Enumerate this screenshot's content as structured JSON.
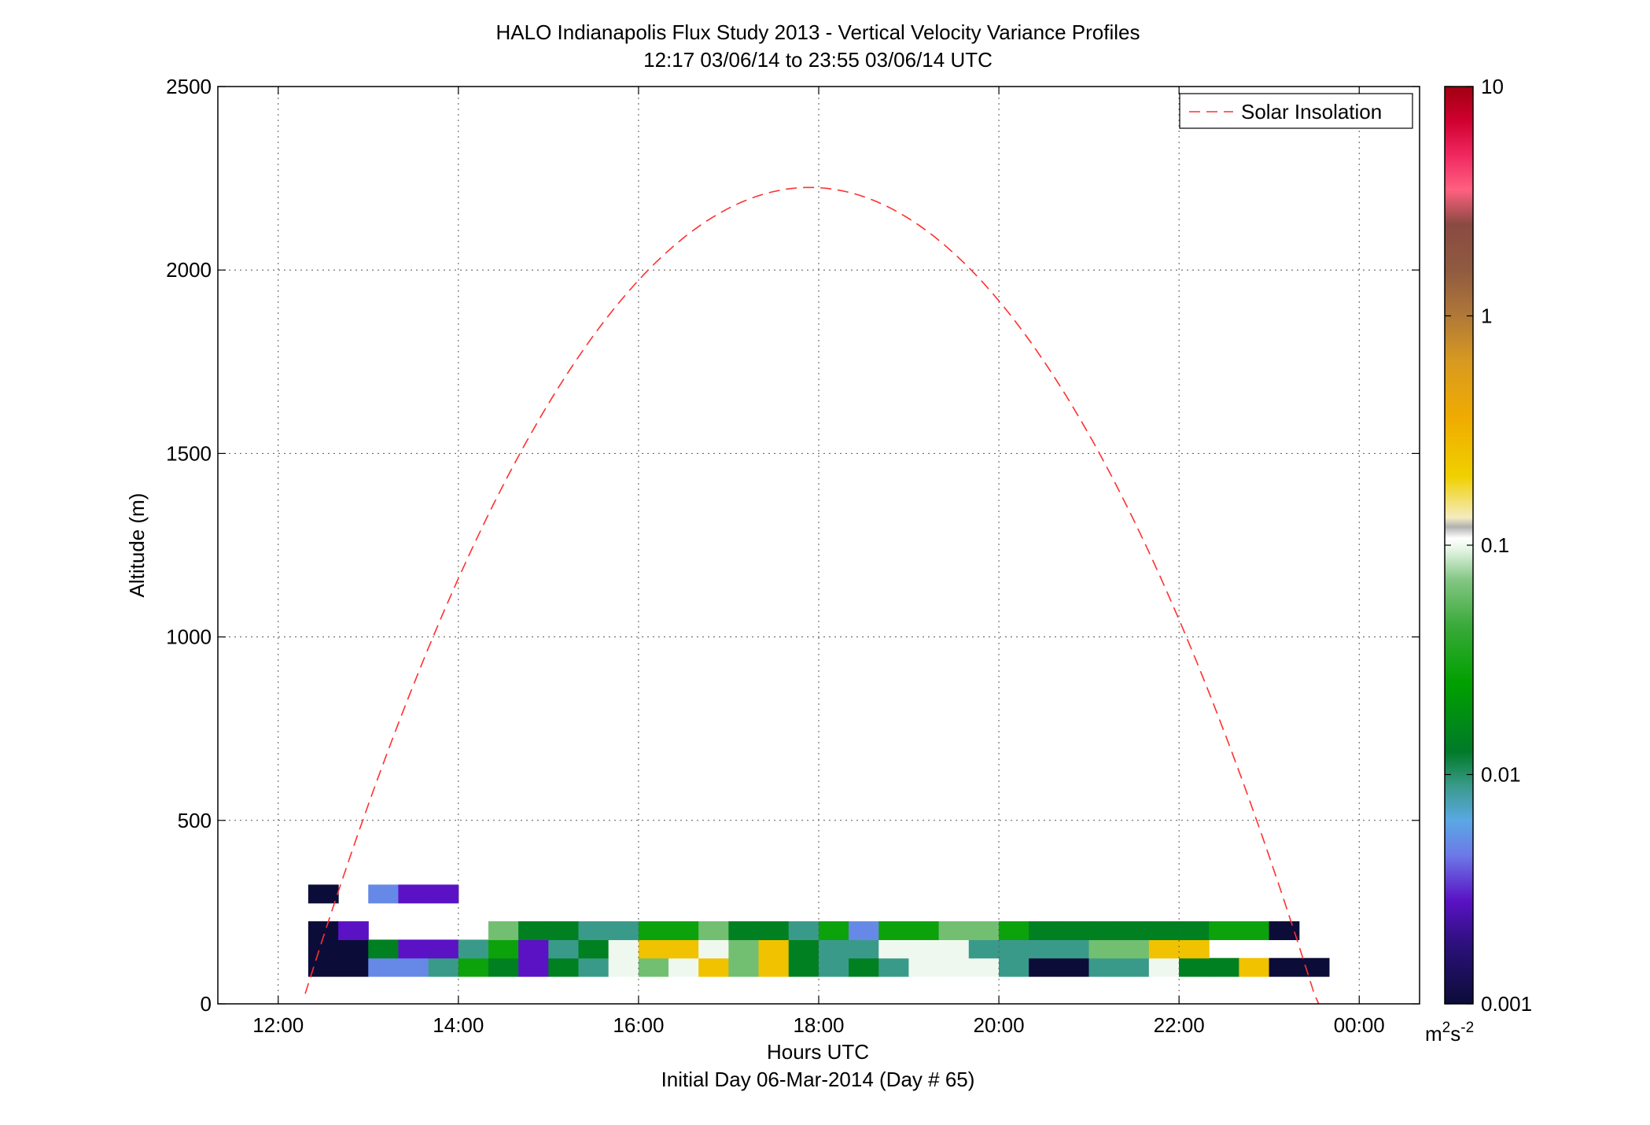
{
  "chart_data": {
    "type": "heatmap",
    "title": "HALO Indianapolis Flux Study 2013 - Vertical Velocity Variance Profiles",
    "subtitle": "12:17 03/06/14 to 23:55 03/06/14  UTC",
    "xlabel": "Hours UTC",
    "xlabel2": "Initial Day 06-Mar-2014 (Day # 65)",
    "ylabel": "Altitude (m)",
    "xlim_hours": [
      11.33,
      24.67
    ],
    "ylim": [
      0,
      2500
    ],
    "x_ticks": [
      {
        "value": 12,
        "label": "12:00"
      },
      {
        "value": 14,
        "label": "14:00"
      },
      {
        "value": 16,
        "label": "16:00"
      },
      {
        "value": 18,
        "label": "18:00"
      },
      {
        "value": 20,
        "label": "20:00"
      },
      {
        "value": 22,
        "label": "22:00"
      },
      {
        "value": 24,
        "label": "00:00"
      }
    ],
    "y_ticks": [
      0,
      500,
      1000,
      1500,
      2000,
      2500
    ],
    "grid": true,
    "colorbar": {
      "scale": "log",
      "range": [
        0.001,
        10
      ],
      "ticks": [
        {
          "value": 10,
          "label": "10"
        },
        {
          "value": 1,
          "label": "1"
        },
        {
          "value": 0.1,
          "label": "0.1"
        },
        {
          "value": 0.01,
          "label": "0.01"
        },
        {
          "value": 0.001,
          "label": "0.001"
        }
      ],
      "units_base": "m",
      "units_sup1": "2",
      "units_mid": "s",
      "units_sup2": "-2",
      "stops": [
        {
          "logv": -3.0,
          "color": "#0c0c38"
        },
        {
          "logv": -2.75,
          "color": "#2a1078"
        },
        {
          "logv": -2.55,
          "color": "#5a12c4"
        },
        {
          "logv": -2.35,
          "color": "#6c7ae8"
        },
        {
          "logv": -2.2,
          "color": "#5aa8e4"
        },
        {
          "logv": -2.05,
          "color": "#3a9a8a"
        },
        {
          "logv": -1.9,
          "color": "#007a28"
        },
        {
          "logv": -1.6,
          "color": "#00a000"
        },
        {
          "logv": -1.35,
          "color": "#3aaa3a"
        },
        {
          "logv": -1.15,
          "color": "#84c684"
        },
        {
          "logv": -1.02,
          "color": "#e4f4e4"
        },
        {
          "logv": -0.97,
          "color": "#ffffff"
        },
        {
          "logv": -0.92,
          "color": "#b0b0b0"
        },
        {
          "logv": -0.88,
          "color": "#f4ecc0"
        },
        {
          "logv": -0.7,
          "color": "#f0d000"
        },
        {
          "logv": -0.45,
          "color": "#f0ac00"
        },
        {
          "logv": -0.2,
          "color": "#d89a20"
        },
        {
          "logv": 0.0,
          "color": "#b07838"
        },
        {
          "logv": 0.2,
          "color": "#905a40"
        },
        {
          "logv": 0.4,
          "color": "#8a4a42"
        },
        {
          "logv": 0.55,
          "color": "#ff6080"
        },
        {
          "logv": 0.7,
          "color": "#f02860"
        },
        {
          "logv": 0.85,
          "color": "#d00030"
        },
        {
          "logv": 1.0,
          "color": "#a00010"
        }
      ]
    },
    "cells": {
      "x_start": 12.333,
      "dx": 0.3333,
      "y_start": 75,
      "dy": 50,
      "rows": [
        [
          1,
          1,
          3,
          3,
          4,
          6,
          5,
          2,
          5,
          4,
          8,
          7,
          8,
          9,
          7,
          9,
          5,
          4,
          5,
          4,
          8,
          8,
          8,
          4,
          1,
          1,
          4,
          4,
          8,
          5,
          5,
          9,
          1,
          1,
          0,
          0,
          0
        ],
        [
          1,
          1,
          5,
          2,
          2,
          4,
          6,
          2,
          4,
          5,
          8,
          9,
          9,
          8,
          7,
          9,
          5,
          4,
          4,
          8,
          8,
          8,
          4,
          4,
          4,
          4,
          7,
          7,
          9,
          9,
          0,
          0,
          0,
          0,
          0,
          0,
          0
        ],
        [
          1,
          2,
          0,
          0,
          0,
          0,
          7,
          5,
          5,
          4,
          4,
          6,
          6,
          7,
          5,
          5,
          4,
          6,
          3,
          6,
          6,
          7,
          7,
          6,
          5,
          5,
          5,
          5,
          5,
          5,
          6,
          6,
          1,
          0,
          0,
          0,
          0
        ],
        [
          0,
          0,
          0,
          0,
          0,
          0,
          0,
          0,
          0,
          0,
          0,
          0,
          0,
          0,
          0,
          0,
          0,
          0,
          0,
          0,
          0,
          0,
          0,
          0,
          0,
          0,
          0,
          0,
          0,
          0,
          0,
          0,
          0,
          0,
          0,
          0,
          0
        ],
        [
          1,
          0,
          3,
          2,
          2,
          0,
          0,
          0,
          0,
          0,
          0,
          0,
          0,
          0,
          0,
          0,
          0,
          0,
          0,
          0,
          0,
          0,
          0,
          0,
          0,
          0,
          0,
          0,
          0,
          0,
          0,
          0,
          0,
          0,
          0,
          0,
          0
        ]
      ]
    },
    "legend": {
      "label": "Solar Insolation",
      "color": "#ff3030",
      "position": "top-right"
    },
    "solar_curve": {
      "peak_hour": 17.9,
      "peak_altitude": 2225,
      "zero_hours": [
        12.3,
        23.57
      ]
    }
  }
}
